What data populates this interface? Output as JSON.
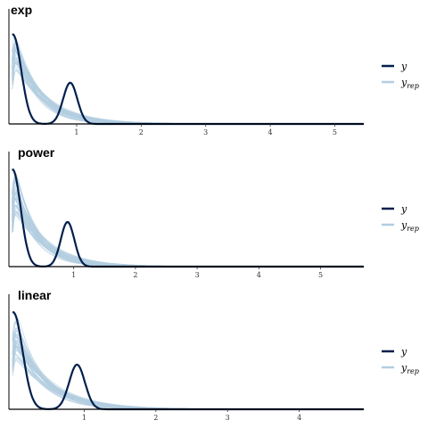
{
  "chart_data": [
    {
      "type": "line",
      "title": "exp",
      "xlabel": "",
      "ylabel": "",
      "xlim": [
        -0.05,
        5.45
      ],
      "x_ticks": [
        1,
        2,
        3,
        4,
        5
      ],
      "y_axis_ticks": false,
      "grid": false,
      "legend": {
        "position": "right",
        "entries": [
          "y",
          "y_rep"
        ]
      },
      "colors": {
        "y": "#011f4b",
        "y_rep": "#b3cde0"
      },
      "series": [
        {
          "name": "y",
          "density": {
            "spikes": [
              {
                "center": 0.01,
                "sd": 0.13,
                "weight": 0.72
              },
              {
                "center": 0.9,
                "sd": 0.11,
                "weight": 0.28
              }
            ]
          },
          "peak_density": 1.2
        },
        {
          "name": "y_rep",
          "draws": 40,
          "density": {
            "form": "exponential-like",
            "mean": 0.42,
            "tail_to": 2.5
          }
        }
      ]
    },
    {
      "type": "line",
      "title": "power",
      "xlabel": "",
      "ylabel": "",
      "xlim": [
        -0.05,
        5.7
      ],
      "x_ticks": [
        1,
        2,
        3,
        4,
        5
      ],
      "y_axis_ticks": false,
      "grid": false,
      "legend": {
        "position": "right",
        "entries": [
          "y",
          "y_rep"
        ]
      },
      "colors": {
        "y": "#011f4b",
        "y_rep": "#b3cde0"
      },
      "series": [
        {
          "name": "y",
          "density": {
            "spikes": [
              {
                "center": 0.01,
                "sd": 0.13,
                "weight": 0.72
              },
              {
                "center": 0.9,
                "sd": 0.11,
                "weight": 0.28
              }
            ]
          },
          "peak_density": 1.3
        },
        {
          "name": "y_rep",
          "draws": 40,
          "density": {
            "form": "exponential-like",
            "mean": 0.42,
            "tail_to": 2.5
          }
        }
      ]
    },
    {
      "type": "line",
      "title": "linear",
      "xlabel": "",
      "ylabel": "",
      "xlim": [
        -0.05,
        4.9
      ],
      "x_ticks": [
        1,
        2,
        3,
        4
      ],
      "y_axis_ticks": false,
      "grid": false,
      "legend": {
        "position": "right",
        "entries": [
          "y",
          "y_rep"
        ]
      },
      "colors": {
        "y": "#011f4b",
        "y_rep": "#b3cde0"
      },
      "series": [
        {
          "name": "y",
          "density": {
            "spikes": [
              {
                "center": 0.01,
                "sd": 0.13,
                "weight": 0.72
              },
              {
                "center": 0.9,
                "sd": 0.11,
                "weight": 0.28
              }
            ]
          },
          "peak_density": 1.3
        },
        {
          "name": "y_rep",
          "draws": 40,
          "density": {
            "form": "exponential-like",
            "mean": 0.42,
            "tail_to": 2.5
          }
        }
      ]
    }
  ],
  "legend_labels": {
    "y": "y",
    "yrep_main": "y",
    "yrep_sub": "rep"
  }
}
